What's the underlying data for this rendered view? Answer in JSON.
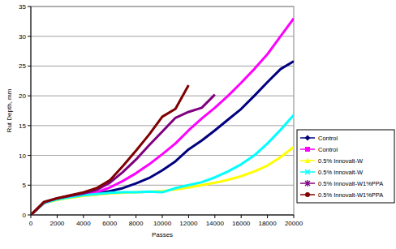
{
  "chart_data": {
    "type": "line",
    "x_label": "Passes",
    "y_label": "Rut Depth, mm",
    "x": [
      0,
      1000,
      2000,
      3000,
      4000,
      5000,
      6000,
      7000,
      8000,
      9000,
      10000,
      11000,
      12000,
      13000,
      14000,
      15000,
      16000,
      17000,
      18000,
      19000,
      20000
    ],
    "xlim": [
      0,
      20000
    ],
    "xticks": [
      0,
      2000,
      4000,
      6000,
      8000,
      10000,
      12000,
      14000,
      16000,
      18000,
      20000
    ],
    "ylim": [
      0,
      35
    ],
    "yticks": [
      0,
      5,
      10,
      15,
      20,
      25,
      30,
      35
    ],
    "grid": true,
    "legend": "right",
    "series": [
      {
        "name": "Control",
        "color": "#000080",
        "marker": "diamond",
        "values": [
          0,
          2.0,
          2.6,
          3.0,
          3.3,
          3.6,
          4.0,
          4.5,
          5.3,
          6.2,
          7.5,
          9.0,
          11.0,
          12.5,
          14.2,
          16.0,
          17.8,
          20.0,
          22.3,
          24.5,
          25.8
        ]
      },
      {
        "name": "Control",
        "color": "#ff00ff",
        "marker": "square",
        "values": [
          0,
          2.0,
          2.6,
          3.0,
          3.4,
          3.8,
          4.6,
          5.7,
          7.0,
          8.5,
          10.2,
          12.0,
          14.2,
          16.2,
          18.0,
          20.0,
          22.2,
          24.5,
          27.0,
          30.0,
          33.0
        ]
      },
      {
        "name": "0.5% Innovalt-W",
        "color": "#ffff00",
        "marker": "triangle",
        "values": [
          0,
          2.0,
          2.5,
          2.9,
          3.2,
          3.4,
          3.6,
          3.7,
          3.8,
          3.9,
          4.0,
          4.3,
          4.6,
          5.0,
          5.4,
          5.9,
          6.5,
          7.3,
          8.3,
          9.7,
          11.4
        ]
      },
      {
        "name": "0.5% Innovalt-W",
        "color": "#00ffff",
        "marker": "x",
        "values": [
          0,
          2.0,
          2.6,
          3.0,
          3.3,
          3.5,
          3.7,
          3.8,
          3.8,
          3.9,
          3.8,
          4.5,
          5.0,
          5.5,
          6.3,
          7.3,
          8.5,
          10.0,
          12.0,
          14.3,
          16.8
        ]
      },
      {
        "name": "0.5% Innovalt-W1%PPA",
        "color": "#800080",
        "marker": "star",
        "values": [
          0,
          2.1,
          2.8,
          3.2,
          3.6,
          4.2,
          5.4,
          7.2,
          9.3,
          11.7,
          14.0,
          16.3,
          17.3,
          18.0,
          20.2,
          null,
          null,
          null,
          null,
          null,
          null
        ]
      },
      {
        "name": "0.5% Innovalt-W1%PPA",
        "color": "#800000",
        "marker": "circle",
        "values": [
          0,
          2.2,
          2.8,
          3.3,
          3.8,
          4.5,
          5.8,
          8.2,
          10.8,
          13.5,
          16.5,
          17.8,
          21.8,
          null,
          null,
          null,
          null,
          null,
          null,
          null,
          null
        ]
      }
    ]
  }
}
